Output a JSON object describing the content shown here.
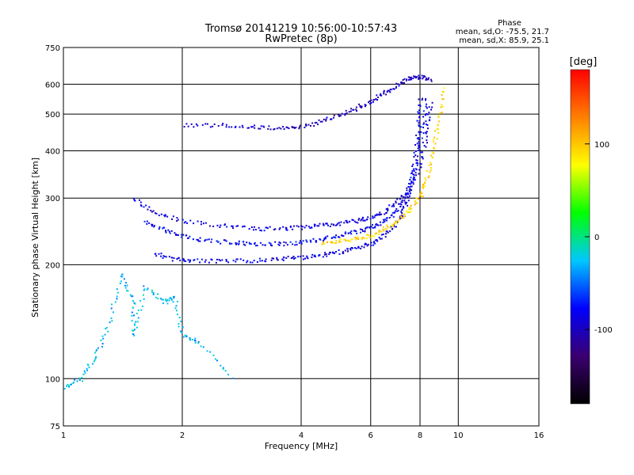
{
  "chart_data": {
    "type": "scatter",
    "title": "Tromsø 20141219 10:56:00-10:57:43",
    "subtitle": "RwPretec (8p)",
    "xlabel": "Frequency [MHz]",
    "ylabel": "Stationary phase Virtual Height [km]",
    "x_scale": "log",
    "y_scale": "log",
    "xlim": [
      1,
      16
    ],
    "ylim": [
      75,
      750
    ],
    "x_ticks": [
      1,
      2,
      4,
      6,
      8,
      10,
      16
    ],
    "y_ticks": [
      75,
      100,
      200,
      300,
      400,
      500,
      600,
      750
    ],
    "grid": true,
    "stats": {
      "heading": "Phase",
      "line1": "mean, sd,O: -75.5, 21.7",
      "line2": "mean, sd,X:  85.9, 25.1"
    },
    "colorbar": {
      "title": "[deg]",
      "range": [
        -180,
        180
      ],
      "ticks": [
        100,
        0,
        -100
      ],
      "colors": [
        "#000000",
        "#3a0070",
        "#0000ff",
        "#00c8ff",
        "#00ff00",
        "#ffff00",
        "#ff8000",
        "#ff0000"
      ]
    },
    "series": [
      {
        "trace": "o-low",
        "phase": -85,
        "x": [
          1.7,
          1.9,
          2.1,
          2.5,
          3.0,
          3.5,
          4.0,
          4.5,
          5.0,
          5.5,
          6.0,
          6.5,
          7.0,
          7.3,
          7.6,
          7.8,
          7.9,
          8.0
        ],
        "y": [
          215,
          208,
          206,
          205,
          206,
          208,
          210,
          213,
          217,
          222,
          228,
          240,
          262,
          285,
          330,
          400,
          480,
          560
        ]
      },
      {
        "trace": "o-mid",
        "phase": -80,
        "x": [
          1.6,
          1.8,
          2.0,
          2.3,
          2.7,
          3.0,
          3.5,
          4.0,
          4.5,
          5.0,
          5.5,
          6.0,
          6.5,
          7.0,
          7.4,
          7.8,
          8.1,
          8.3
        ],
        "y": [
          260,
          248,
          240,
          232,
          230,
          228,
          228,
          230,
          235,
          240,
          245,
          252,
          262,
          280,
          310,
          370,
          460,
          560
        ]
      },
      {
        "trace": "o-up",
        "phase": -90,
        "x": [
          1.5,
          1.7,
          2.0,
          2.5,
          3.0,
          3.5,
          4.0,
          4.5,
          5.0,
          5.5,
          6.0,
          6.5,
          7.0,
          7.5,
          8.0,
          8.3,
          8.5
        ],
        "y": [
          300,
          275,
          262,
          255,
          250,
          250,
          252,
          255,
          258,
          262,
          268,
          278,
          295,
          320,
          370,
          450,
          540
        ]
      },
      {
        "trace": "x-mode",
        "phase": 95,
        "x": [
          4.5,
          5.0,
          5.5,
          6.0,
          6.5,
          7.0,
          7.5,
          8.0,
          8.3,
          8.6,
          8.9,
          9.2
        ],
        "y": [
          230,
          232,
          236,
          240,
          250,
          262,
          280,
          305,
          340,
          400,
          480,
          600
        ]
      },
      {
        "trace": "f2-up",
        "phase": -100,
        "x": [
          2.0,
          2.5,
          3.0,
          3.5,
          4.0,
          4.5,
          5.0,
          5.5,
          6.0,
          6.5,
          7.0,
          7.5,
          8.0,
          8.5
        ],
        "y": [
          470,
          470,
          465,
          460,
          465,
          480,
          500,
          520,
          545,
          570,
          600,
          625,
          630,
          620
        ]
      },
      {
        "trace": "low-scatter",
        "phase": -30,
        "x": [
          1.0,
          1.1,
          1.2,
          1.3,
          1.4,
          1.5,
          1.5,
          1.6,
          1.8,
          1.9,
          2.0,
          2.2,
          2.7
        ],
        "y": [
          95,
          100,
          115,
          140,
          190,
          160,
          130,
          175,
          160,
          165,
          130,
          125,
          100
        ]
      }
    ]
  }
}
